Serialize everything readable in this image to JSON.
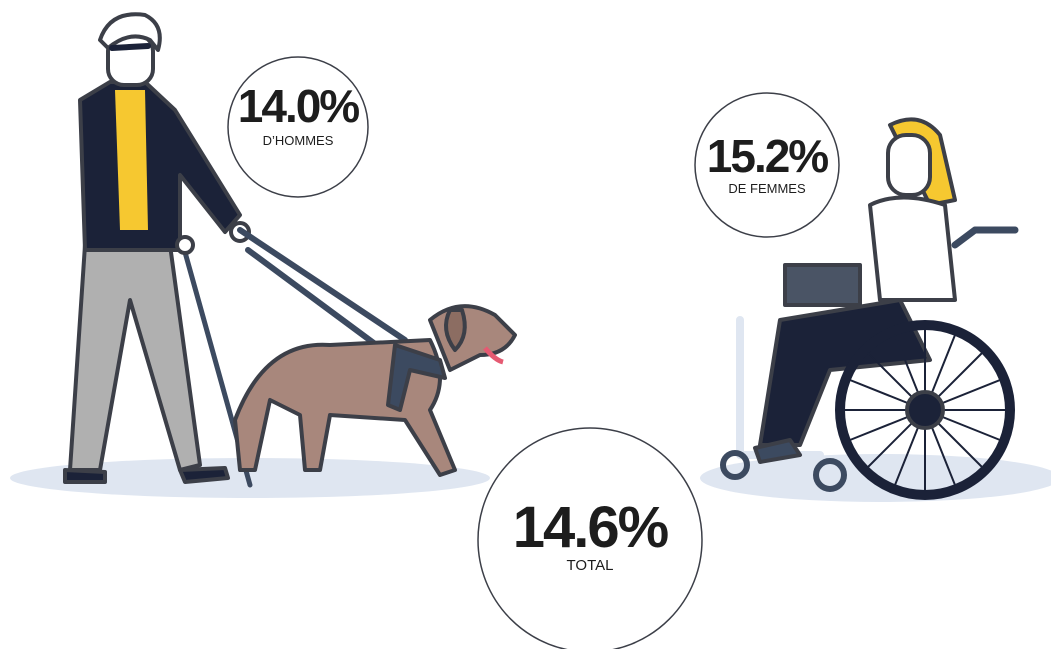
{
  "stats": [
    {
      "value": "14.0%",
      "label": "D’HOMMES"
    },
    {
      "value": "15.2%",
      "label": "DE FEMMES"
    },
    {
      "value": "14.6%",
      "label": "TOTAL"
    }
  ]
}
